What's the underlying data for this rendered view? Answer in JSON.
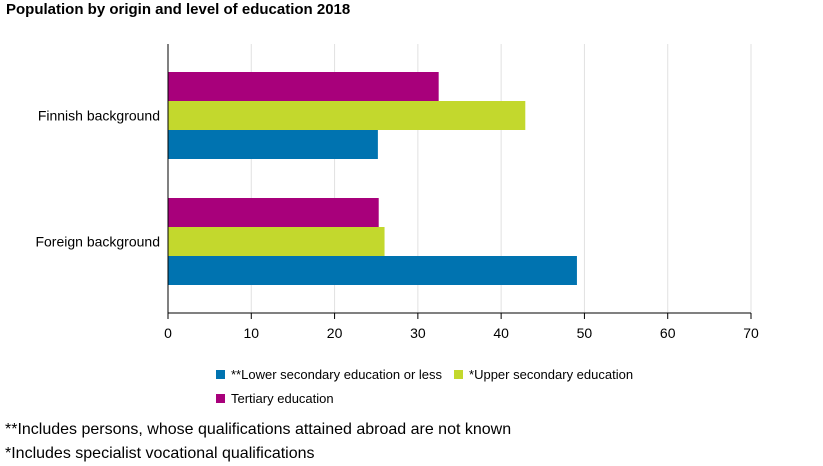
{
  "chart_data": {
    "type": "bar",
    "orientation": "horizontal",
    "title": "Population by origin and level of education 2018",
    "categories": [
      "Finnish background",
      "Foreign background"
    ],
    "series": [
      {
        "name": "**Lower secondary education or less",
        "color": "#0073b0",
        "values": [
          25.2,
          49.1
        ]
      },
      {
        "name": "*Upper secondary education",
        "color": "#c3d82d",
        "values": [
          42.9,
          26.0
        ]
      },
      {
        "name": "Tertiary education",
        "color": "#a8007b",
        "values": [
          32.5,
          25.3
        ]
      }
    ],
    "xlim": [
      0,
      70
    ],
    "xticks": [
      "0",
      "10",
      "20",
      "30",
      "40",
      "50",
      "60",
      "70"
    ],
    "grid": true,
    "legend_position": "bottom"
  },
  "notes": [
    "**Includes persons, whose qualifications attained abroad are not known",
    "*Includes specialist vocational qualifications"
  ]
}
